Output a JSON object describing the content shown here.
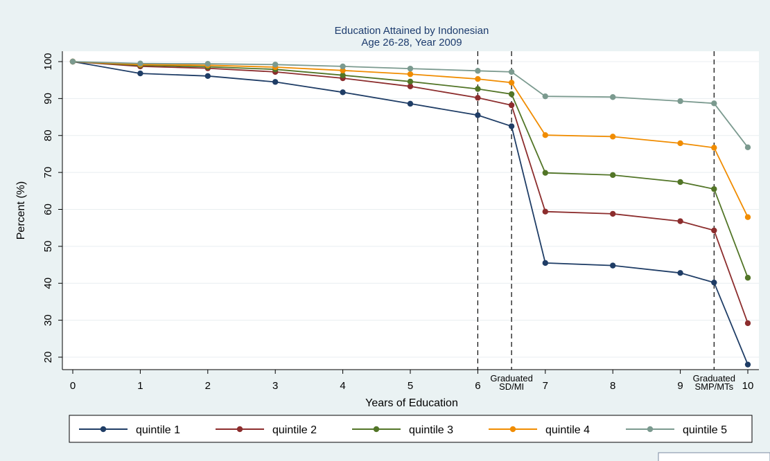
{
  "chart_data": {
    "type": "line",
    "title": "Education Attained by Indonesian",
    "subtitle": "Age 26-28, Year 2009",
    "xlabel": "Years of Education",
    "ylabel": "Percent (%)",
    "x": [
      0,
      1,
      2,
      3,
      4,
      5,
      6,
      7,
      8,
      9,
      10
    ],
    "xlim": [
      0,
      10
    ],
    "ylim": [
      20,
      100
    ],
    "yticks": [
      20,
      30,
      40,
      50,
      60,
      70,
      80,
      90,
      100
    ],
    "grid": "horizontal",
    "legend_position": "bottom",
    "markers": [
      {
        "x": 6.0,
        "x_position_index": 6
      },
      {
        "x": 6.5,
        "label_lines": [
          "Graduated",
          "SD/MI"
        ]
      },
      {
        "x": 9.5,
        "label_lines": [
          "Graduated",
          "SMP/MTs"
        ]
      }
    ],
    "series": [
      {
        "name": "quintile 1",
        "color": "#1f3d66",
        "points": [
          [
            0,
            100
          ],
          [
            1,
            96.8
          ],
          [
            2,
            96.1
          ],
          [
            3,
            94.5
          ],
          [
            4,
            91.7
          ],
          [
            5,
            88.6
          ],
          [
            6,
            85.5
          ],
          [
            6.5,
            82.5
          ],
          [
            7,
            45.5
          ],
          [
            8,
            44.8
          ],
          [
            9,
            42.8
          ],
          [
            9.5,
            40.2
          ],
          [
            10,
            18
          ]
        ]
      },
      {
        "name": "quintile 2",
        "color": "#8c2d2d",
        "points": [
          [
            0,
            100
          ],
          [
            1,
            98.7
          ],
          [
            2,
            98.2
          ],
          [
            3,
            97.2
          ],
          [
            4,
            95.5
          ],
          [
            5,
            93.3
          ],
          [
            6,
            90.2
          ],
          [
            6.5,
            88.2
          ],
          [
            7,
            59.4
          ],
          [
            8,
            58.8
          ],
          [
            9,
            56.8
          ],
          [
            9.5,
            54.3
          ],
          [
            10,
            29.2
          ]
        ]
      },
      {
        "name": "quintile 3",
        "color": "#527527",
        "points": [
          [
            0,
            100
          ],
          [
            1,
            99
          ],
          [
            2,
            98.6
          ],
          [
            3,
            97.9
          ],
          [
            4,
            96.3
          ],
          [
            5,
            94.6
          ],
          [
            6,
            92.6
          ],
          [
            6.5,
            91.2
          ],
          [
            7,
            69.9
          ],
          [
            8,
            69.3
          ],
          [
            9,
            67.4
          ],
          [
            9.5,
            65.5
          ],
          [
            10,
            41.5
          ]
        ]
      },
      {
        "name": "quintile 4",
        "color": "#f08c00",
        "points": [
          [
            0,
            100
          ],
          [
            1,
            99.2
          ],
          [
            2,
            99
          ],
          [
            3,
            98.5
          ],
          [
            4,
            97.6
          ],
          [
            5,
            96.6
          ],
          [
            6,
            95.3
          ],
          [
            6.5,
            94.3
          ],
          [
            7,
            80.1
          ],
          [
            8,
            79.7
          ],
          [
            9,
            77.9
          ],
          [
            9.5,
            76.7
          ],
          [
            10,
            57.9
          ]
        ]
      },
      {
        "name": "quintile 5",
        "color": "#7b9a8f",
        "points": [
          [
            0,
            100
          ],
          [
            1,
            99.5
          ],
          [
            2,
            99.4
          ],
          [
            3,
            99.2
          ],
          [
            4,
            98.7
          ],
          [
            5,
            98.1
          ],
          [
            6,
            97.5
          ],
          [
            6.5,
            97.2
          ],
          [
            7,
            90.6
          ],
          [
            8,
            90.4
          ],
          [
            9,
            89.3
          ],
          [
            9.5,
            88.7
          ],
          [
            10,
            76.8
          ]
        ]
      }
    ]
  }
}
